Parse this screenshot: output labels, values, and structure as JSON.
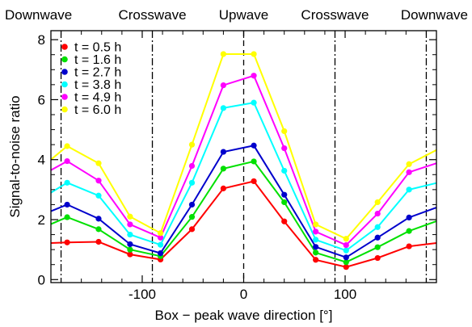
{
  "chart_data": {
    "type": "line",
    "xlabel": "Box − peak wave direction [°]",
    "ylabel": "Signal-to-noise ratio",
    "xlim": [
      -190,
      190
    ],
    "ylim": [
      -0.1,
      8.3
    ],
    "x_ticks": [
      -100,
      0,
      100
    ],
    "x_tick_labels": [
      "-100",
      "0",
      "100"
    ],
    "y_ticks": [
      0,
      2,
      4,
      6,
      8
    ],
    "y_tick_labels": [
      "0",
      "2",
      "4",
      "6",
      "8"
    ],
    "grid": false,
    "legend_position": "top-left",
    "direction_labels": [
      {
        "text": "Downwave",
        "x": -180
      },
      {
        "text": "Crosswave",
        "x": -90
      },
      {
        "text": "Upwave",
        "x": 0
      },
      {
        "text": "Crosswave",
        "x": 90
      },
      {
        "text": "Downwave",
        "x": 180
      }
    ],
    "reference_lines": [
      {
        "x": -180,
        "style": "dash-dot"
      },
      {
        "x": -90,
        "style": "dash-dot"
      },
      {
        "x": 0,
        "style": "dashed"
      },
      {
        "x": 90,
        "style": "dash-dot"
      },
      {
        "x": 180,
        "style": "dash-dot"
      }
    ],
    "x": [
      -190,
      -174,
      -143,
      -112,
      -82,
      -51,
      -20,
      10,
      40,
      71,
      101,
      132,
      163,
      190
    ],
    "series": [
      {
        "name": "t = 0.5 h",
        "color": "#ff0000",
        "values": [
          1.22,
          1.24,
          1.26,
          0.84,
          0.67,
          1.68,
          3.04,
          3.28,
          1.94,
          0.66,
          0.42,
          0.72,
          1.11,
          1.22
        ]
      },
      {
        "name": "t = 1.6 h",
        "color": "#00e000",
        "values": [
          1.85,
          2.08,
          1.68,
          1.0,
          0.78,
          2.09,
          3.7,
          3.94,
          2.58,
          0.9,
          0.58,
          1.08,
          1.62,
          1.95
        ]
      },
      {
        "name": "t = 2.7 h",
        "color": "#0000cc",
        "values": [
          2.28,
          2.5,
          2.03,
          1.18,
          0.88,
          2.5,
          4.26,
          4.47,
          2.83,
          1.09,
          0.74,
          1.4,
          2.07,
          2.4
        ]
      },
      {
        "name": "t = 3.8 h",
        "color": "#00ffff",
        "values": [
          2.9,
          3.23,
          2.8,
          1.5,
          1.16,
          3.23,
          5.72,
          5.9,
          3.63,
          1.33,
          0.97,
          1.75,
          3.0,
          3.22
        ]
      },
      {
        "name": "t = 4.9 h",
        "color": "#ff00ff",
        "values": [
          3.65,
          3.95,
          3.3,
          1.84,
          1.4,
          3.79,
          6.48,
          6.8,
          4.38,
          1.6,
          1.15,
          2.2,
          3.58,
          3.88
        ]
      },
      {
        "name": "t = 6.0 h",
        "color": "#ffff00",
        "values": [
          4.0,
          4.45,
          3.88,
          2.1,
          1.55,
          4.5,
          7.52,
          7.52,
          4.95,
          1.84,
          1.36,
          2.58,
          3.85,
          4.32
        ]
      }
    ]
  }
}
